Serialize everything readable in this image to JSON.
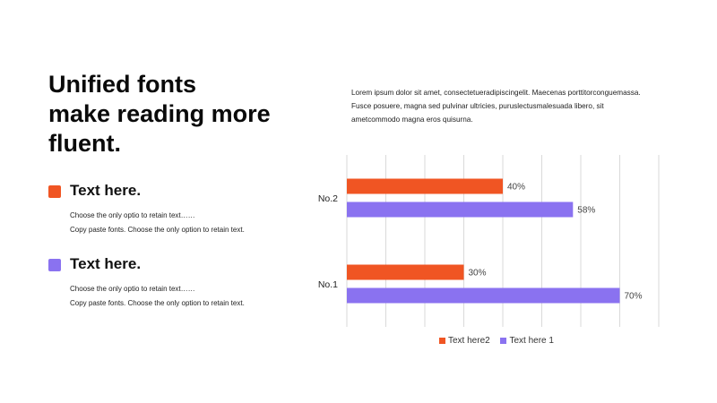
{
  "title_lines": [
    "Unified fonts",
    "make reading more",
    "fluent."
  ],
  "items": [
    {
      "heading": "Text here.",
      "color": "#F05523",
      "lines": [
        "Choose the only optio to retain text……",
        "Copy paste  fonts. Choose the only option to retain text."
      ]
    },
    {
      "heading": "Text here.",
      "color": "#8A72F0",
      "lines": [
        "Choose the only optio to retain text……",
        "Copy paste  fonts. Choose the only option to retain text."
      ]
    }
  ],
  "intro_lines": [
    "Lorem ipsum dolor sit amet, consectetueradipiscingelit. Maecenas porttitorconguemassa.",
    "Fusce posuere, magna sed pulvinar ultricies, puruslectusmalesuada libero, sit",
    "ametcommodo  magna  eros quisurna."
  ],
  "chart_data": {
    "type": "bar",
    "orientation": "horizontal",
    "categories": [
      "No.1",
      "No.2"
    ],
    "series": [
      {
        "name": "Text here2",
        "values": [
          30,
          40
        ],
        "labels": [
          "30%",
          "40%"
        ],
        "color": "#F05523"
      },
      {
        "name": "Text here 1",
        "values": [
          70,
          58
        ],
        "labels": [
          "70%",
          "58%"
        ],
        "color": "#8A72F0"
      }
    ],
    "xlim": [
      0,
      80
    ],
    "grid": true,
    "legend_position": "bottom"
  }
}
